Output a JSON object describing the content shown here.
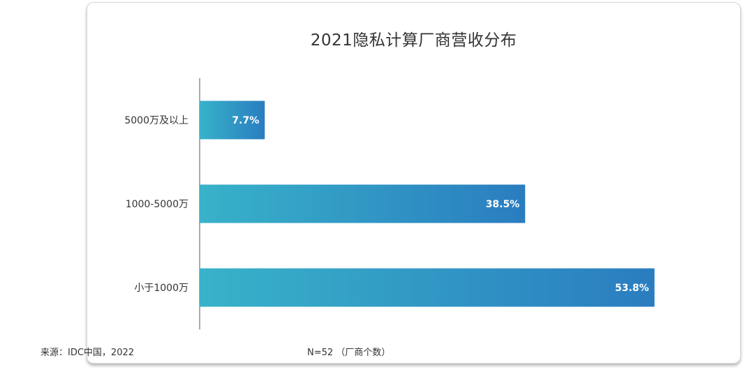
{
  "chart_data": {
    "type": "bar",
    "orientation": "horizontal",
    "title": "2021隐私计算厂商营收分布",
    "categories": [
      "5000万及以上",
      "1000-5000万",
      "小于1000万"
    ],
    "values": [
      7.7,
      38.5,
      53.8
    ],
    "value_labels": [
      "7.7%",
      "38.5%",
      "53.8%"
    ],
    "xlim": [
      0,
      56
    ],
    "grid": false,
    "legend": "none",
    "bar_gradient": [
      "#38b2c9",
      "#2a7dc0"
    ]
  },
  "footer": {
    "source": "来源：IDC中国，2022",
    "sample": "N=52 （厂商个数）"
  }
}
